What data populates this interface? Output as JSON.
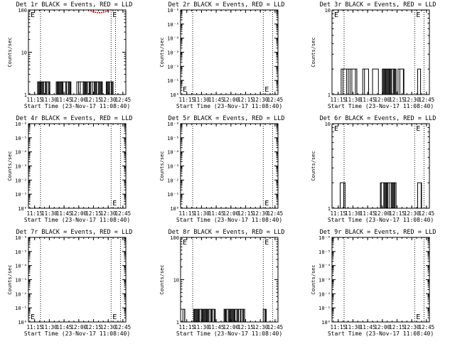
{
  "colors": {
    "events": "#000000",
    "lld": "#ff0000",
    "background": "#ffffff"
  },
  "xlabel": "Start Time (23-Nov-17 11:08:40)",
  "ylabel": "Counts/sec",
  "x_ticks": [
    "11:15",
    "11:30",
    "11:45",
    "12:00",
    "12:15",
    "12:30",
    "12:45"
  ],
  "chart_data": [
    {
      "type": "line",
      "title": "Det 1r BLACK = Events, RED = LLD",
      "yscale": "log",
      "y_ticks": [
        "1",
        "10",
        "100"
      ],
      "xlim": [
        "11:08:40",
        "12:48:00"
      ],
      "ylim": [
        1,
        100
      ],
      "vlines": [
        "11:21:00",
        "12:33:00",
        "12:37:30"
      ],
      "marker_E": [
        "top-left",
        "top-right"
      ],
      "series": [
        {
          "color": "events",
          "segments": [
            {
              "x": [
                "11:18:00",
                "11:30:30"
              ],
              "y": [
                2,
                2
              ],
              "dense": true
            },
            {
              "x": [
                "11:37:00",
                "11:52:00"
              ],
              "y": [
                2,
                2
              ],
              "dense": true
            },
            {
              "x": [
                "11:58:00",
                "12:04:30"
              ],
              "y": [
                2,
                2
              ],
              "dense": false
            },
            {
              "x": [
                "12:04:30",
                "12:24:00"
              ],
              "y": [
                2,
                2
              ],
              "dense": true
            },
            {
              "x": [
                "12:28:00",
                "12:35:00"
              ],
              "y": [
                2,
                2
              ],
              "dense": true
            }
          ]
        },
        {
          "color": "lld",
          "points": {
            "x": [
              "12:12:00",
              "12:14:00",
              "12:16:00",
              "12:18:00",
              "12:20:00",
              "12:22:00",
              "12:24:00",
              "12:26:00",
              "12:28:00",
              "12:30:00"
            ],
            "y": [
              95,
              92,
              89,
              87,
              86,
              86,
              87,
              89,
              92,
              96
            ]
          }
        }
      ]
    },
    {
      "type": "line",
      "title": "Det 2r BLACK = Events, RED = LLD",
      "yscale": "log",
      "y_ticks": [
        "10⁰",
        "10⁻¹",
        "10⁻²",
        "10⁻³",
        "10⁻⁴",
        "10⁻⁵",
        "10⁻⁶"
      ],
      "xlim": [
        "11:08:40",
        "12:48:00"
      ],
      "vlines": [
        "11:21:00",
        "12:33:00",
        "12:42:30"
      ],
      "marker_E": [
        "bottom-left",
        "bottom-right"
      ],
      "series": []
    },
    {
      "type": "line",
      "title": "Det 3r BLACK = Events, RED = LLD",
      "yscale": "log",
      "y_ticks": [
        "1",
        "10"
      ],
      "xlim": [
        "11:08:40",
        "12:48:00"
      ],
      "ylim": [
        1,
        10
      ],
      "vlines": [
        "11:21:00",
        "12:33:00",
        "12:42:30"
      ],
      "marker_E": [
        "top-left",
        "top-right"
      ],
      "series": [
        {
          "color": "events",
          "segments": [
            {
              "x": [
                "11:18:00",
                "11:34:00"
              ],
              "y": [
                2,
                2
              ],
              "dense": false
            },
            {
              "x": [
                "11:40:00",
                "11:46:00"
              ],
              "y": [
                2,
                2
              ],
              "dense": false
            },
            {
              "x": [
                "11:50:00",
                "11:56:00"
              ],
              "y": [
                2,
                2
              ],
              "dense": false
            },
            {
              "x": [
                "12:00:00",
                "12:14:00"
              ],
              "y": [
                2,
                2
              ],
              "dense": true
            },
            {
              "x": [
                "12:16:00",
                "12:22:00"
              ],
              "y": [
                2,
                2
              ],
              "dense": false
            },
            {
              "x": [
                "12:36:00",
                "12:39:00"
              ],
              "y": [
                2,
                2
              ],
              "dense": false
            }
          ]
        }
      ]
    },
    {
      "type": "line",
      "title": "Det 4r BLACK = Events, RED = LLD",
      "yscale": "log",
      "y_ticks": [
        "10⁰",
        "10⁻¹",
        "10⁻²",
        "10⁻³",
        "10⁻⁴",
        "10⁻⁵",
        "10⁻⁶"
      ],
      "xlim": [
        "11:08:40",
        "12:48:00"
      ],
      "vlines": [
        "11:21:00",
        "12:33:00",
        "12:42:30"
      ],
      "marker_E": [
        "bottom-right"
      ],
      "series": []
    },
    {
      "type": "line",
      "title": "Det 5r BLACK = Events, RED = LLD",
      "yscale": "log",
      "y_ticks": [
        "10⁰",
        "10⁻¹",
        "10⁻²",
        "10⁻³",
        "10⁻⁴",
        "10⁻⁵",
        "10⁻⁶"
      ],
      "xlim": [
        "11:08:40",
        "12:48:00"
      ],
      "vlines": [
        "11:21:00",
        "12:33:00",
        "12:42:30"
      ],
      "marker_E": [
        "bottom-right"
      ],
      "series": []
    },
    {
      "type": "line",
      "title": "Det 6r BLACK = Events, RED = LLD",
      "yscale": "log",
      "y_ticks": [
        "1",
        "10"
      ],
      "xlim": [
        "11:08:40",
        "12:48:00"
      ],
      "ylim": [
        1,
        10
      ],
      "vlines": [
        "11:21:00",
        "12:33:00",
        "12:42:30"
      ],
      "marker_E": [
        "top-left",
        "top-right"
      ],
      "series": [
        {
          "color": "events",
          "segments": [
            {
              "x": [
                "11:17:00",
                "11:22:00"
              ],
              "y": [
                2,
                2
              ],
              "dense": false
            },
            {
              "x": [
                "11:58:00",
                "12:14:00"
              ],
              "y": [
                2,
                2
              ],
              "dense": true
            },
            {
              "x": [
                "12:36:00",
                "12:40:00"
              ],
              "y": [
                2,
                2
              ],
              "dense": false
            }
          ]
        }
      ]
    },
    {
      "type": "line",
      "title": "Det 7r BLACK = Events, RED = LLD",
      "yscale": "log",
      "y_ticks": [
        "10⁰",
        "10⁻¹",
        "10⁻²",
        "10⁻³",
        "10⁻⁴",
        "10⁻⁵",
        "10⁻⁶"
      ],
      "xlim": [
        "11:08:40",
        "12:48:00"
      ],
      "vlines": [
        "11:21:00",
        "12:33:00",
        "12:42:30"
      ],
      "marker_E": [
        "bottom-left",
        "bottom-right"
      ],
      "series": []
    },
    {
      "type": "line",
      "title": "Det 8r BLACK = Events, RED = LLD",
      "yscale": "log",
      "y_ticks": [
        "1",
        "10",
        "100"
      ],
      "xlim": [
        "11:08:40",
        "12:48:00"
      ],
      "ylim": [
        1,
        100
      ],
      "vlines": [
        "11:21:00",
        "12:33:00",
        "12:42:30"
      ],
      "marker_E": [
        "top-left",
        "top-right"
      ],
      "series": [
        {
          "color": "events",
          "segments": [
            {
              "x": [
                "11:11:00",
                "11:13:00"
              ],
              "y": [
                2,
                2
              ],
              "dense": false
            },
            {
              "x": [
                "11:22:00",
                "11:44:00"
              ],
              "y": [
                2,
                2
              ],
              "dense": true
            },
            {
              "x": [
                "11:53:00",
                "12:14:00"
              ],
              "y": [
                2,
                2
              ],
              "dense": true
            },
            {
              "x": [
                "12:33:00",
                "12:36:00"
              ],
              "y": [
                2,
                2
              ],
              "dense": true
            }
          ]
        }
      ]
    },
    {
      "type": "line",
      "title": "Det 9r BLACK = Events, RED = LLD",
      "yscale": "log",
      "y_ticks": [
        "10⁰",
        "10⁻¹",
        "10⁻²",
        "10⁻³",
        "10⁻⁴",
        "10⁻⁵",
        "10⁻⁶"
      ],
      "xlim": [
        "11:08:40",
        "12:48:00"
      ],
      "vlines": [
        "11:21:00",
        "12:33:00",
        "12:42:30"
      ],
      "marker_E": [
        "bottom-right"
      ],
      "series": []
    }
  ]
}
